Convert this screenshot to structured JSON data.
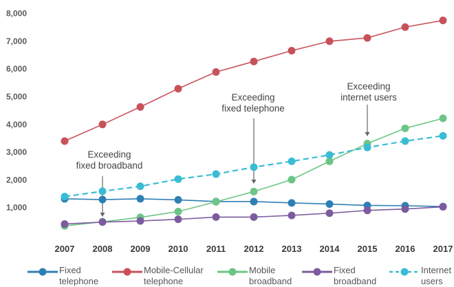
{
  "chart_data": {
    "type": "line",
    "title": "",
    "xlabel": "",
    "ylabel": "",
    "ylim": [
      0,
      8000
    ],
    "x": [
      "2007",
      "2008",
      "2009",
      "2010",
      "2011",
      "2012",
      "2013",
      "2014",
      "2015",
      "2016",
      "2017"
    ],
    "yticks": [
      "1,000",
      "2,000",
      "3,000",
      "4,000",
      "5,000",
      "6,000",
      "7,000",
      "8,000"
    ],
    "grid": false,
    "legend_position": "bottom",
    "series": [
      {
        "name": "Fixed telephone",
        "color": "#2f7fb5",
        "dashed": false,
        "values": [
          1320,
          1290,
          1320,
          1280,
          1220,
          1220,
          1170,
          1130,
          1080,
          1070,
          1040
        ]
      },
      {
        "name": "Mobile-Cellular telephone",
        "color": "#c8525a",
        "dashed": false,
        "values": [
          3400,
          4000,
          4630,
          5290,
          5890,
          6270,
          6660,
          7000,
          7120,
          7510,
          7750
        ]
      },
      {
        "name": "Mobile broadband",
        "color": "#6cc585",
        "dashed": false,
        "values": [
          340,
          490,
          650,
          860,
          1210,
          1580,
          2010,
          2670,
          3310,
          3860,
          4220
        ]
      },
      {
        "name": "Fixed broadband",
        "color": "#7d5b9e",
        "dashed": false,
        "values": [
          410,
          480,
          520,
          580,
          660,
          660,
          720,
          800,
          900,
          950,
          1030
        ]
      },
      {
        "name": "Internet users",
        "color": "#39bcd4",
        "dashed": true,
        "values": [
          1400,
          1590,
          1770,
          2030,
          2210,
          2460,
          2670,
          2900,
          3170,
          3400,
          3590
        ]
      }
    ],
    "annotations": [
      {
        "lines": [
          "Exceeding",
          "fixed broadband"
        ],
        "x": "2008"
      },
      {
        "lines": [
          "Exceeding",
          "fixed telephone"
        ],
        "x": "2012"
      },
      {
        "lines": [
          "Exceeding",
          "internet users"
        ],
        "x": "2015"
      }
    ],
    "legend": [
      {
        "label": [
          "Fixed",
          "telephone"
        ],
        "color": "#2f7fb5",
        "dashed": false
      },
      {
        "label": [
          "Mobile-Cellular",
          "telephone"
        ],
        "color": "#c8525a",
        "dashed": false
      },
      {
        "label": [
          "Mobile",
          "broadband"
        ],
        "color": "#6cc585",
        "dashed": false
      },
      {
        "label": [
          "Fixed",
          "broadband"
        ],
        "color": "#7d5b9e",
        "dashed": false
      },
      {
        "label": [
          "Internet",
          "users"
        ],
        "color": "#39bcd4",
        "dashed": true
      }
    ]
  }
}
